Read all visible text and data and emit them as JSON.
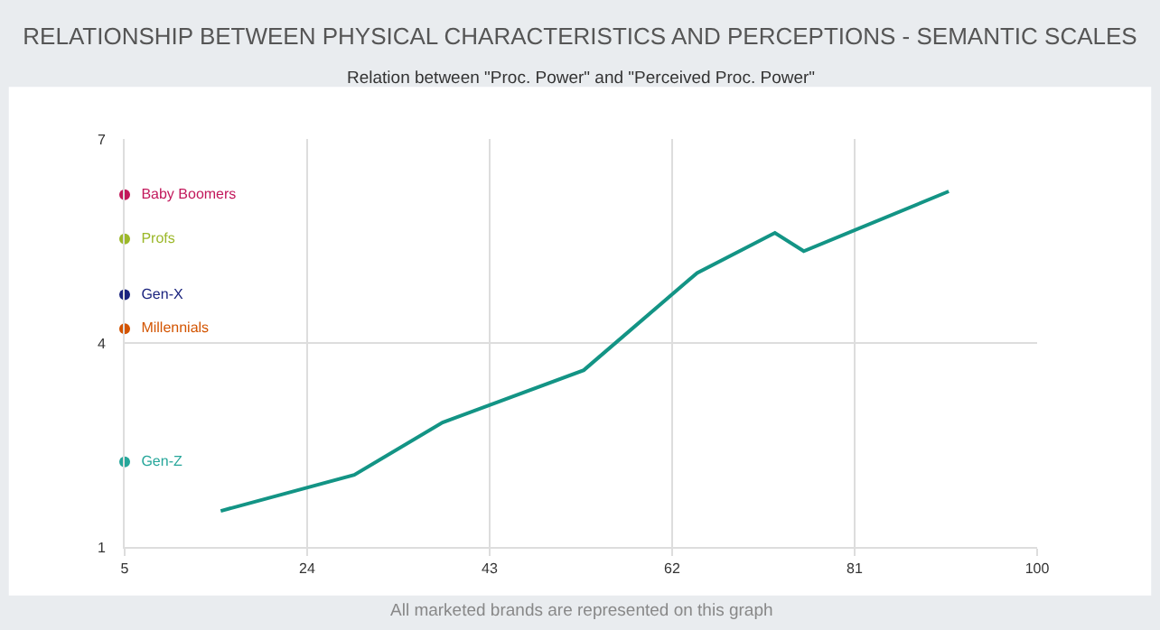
{
  "chart_data": {
    "type": "line",
    "title": "RELATIONSHIP BETWEEN PHYSICAL CHARACTERISTICS AND PERCEPTIONS - SEMANTIC SCALES",
    "subtitle": "Relation between \"Proc. Power\" and \"Perceived Proc. Power\"",
    "annotations": [
      "All marketed brands are represented on this graph"
    ],
    "series": [
      {
        "color": "#139485",
        "x": [
          15.0,
          28.9,
          38.1,
          52.8,
          64.6,
          72.7,
          75.7,
          90.8
        ],
        "values": [
          1.53,
          2.06,
          2.83,
          3.6,
          5.03,
          5.62,
          5.35,
          6.23
        ]
      },
      {
        "type": "scatter",
        "name": "Baby Boomers",
        "color": "#c2185b",
        "x": [
          5
        ],
        "values": [
          6.18
        ]
      },
      {
        "type": "scatter",
        "name": "Profs",
        "color": "#9cb82a",
        "x": [
          5
        ],
        "values": [
          5.53
        ]
      },
      {
        "type": "scatter",
        "name": "Gen-X",
        "color": "#1a237e",
        "x": [
          5
        ],
        "values": [
          4.71
        ]
      },
      {
        "type": "scatter",
        "name": "Millennials",
        "color": "#d35400",
        "x": [
          5
        ],
        "values": [
          4.21
        ]
      },
      {
        "type": "scatter",
        "name": "Gen-Z",
        "color": "#26a69a",
        "x": [
          5
        ],
        "values": [
          2.25
        ]
      }
    ],
    "xlim": [
      5,
      100
    ],
    "xticks": [
      5,
      24,
      43,
      62,
      81,
      100
    ],
    "ylim": [
      1,
      7
    ],
    "yticks": [
      1,
      4,
      7
    ],
    "grid": true,
    "legend": false
  }
}
